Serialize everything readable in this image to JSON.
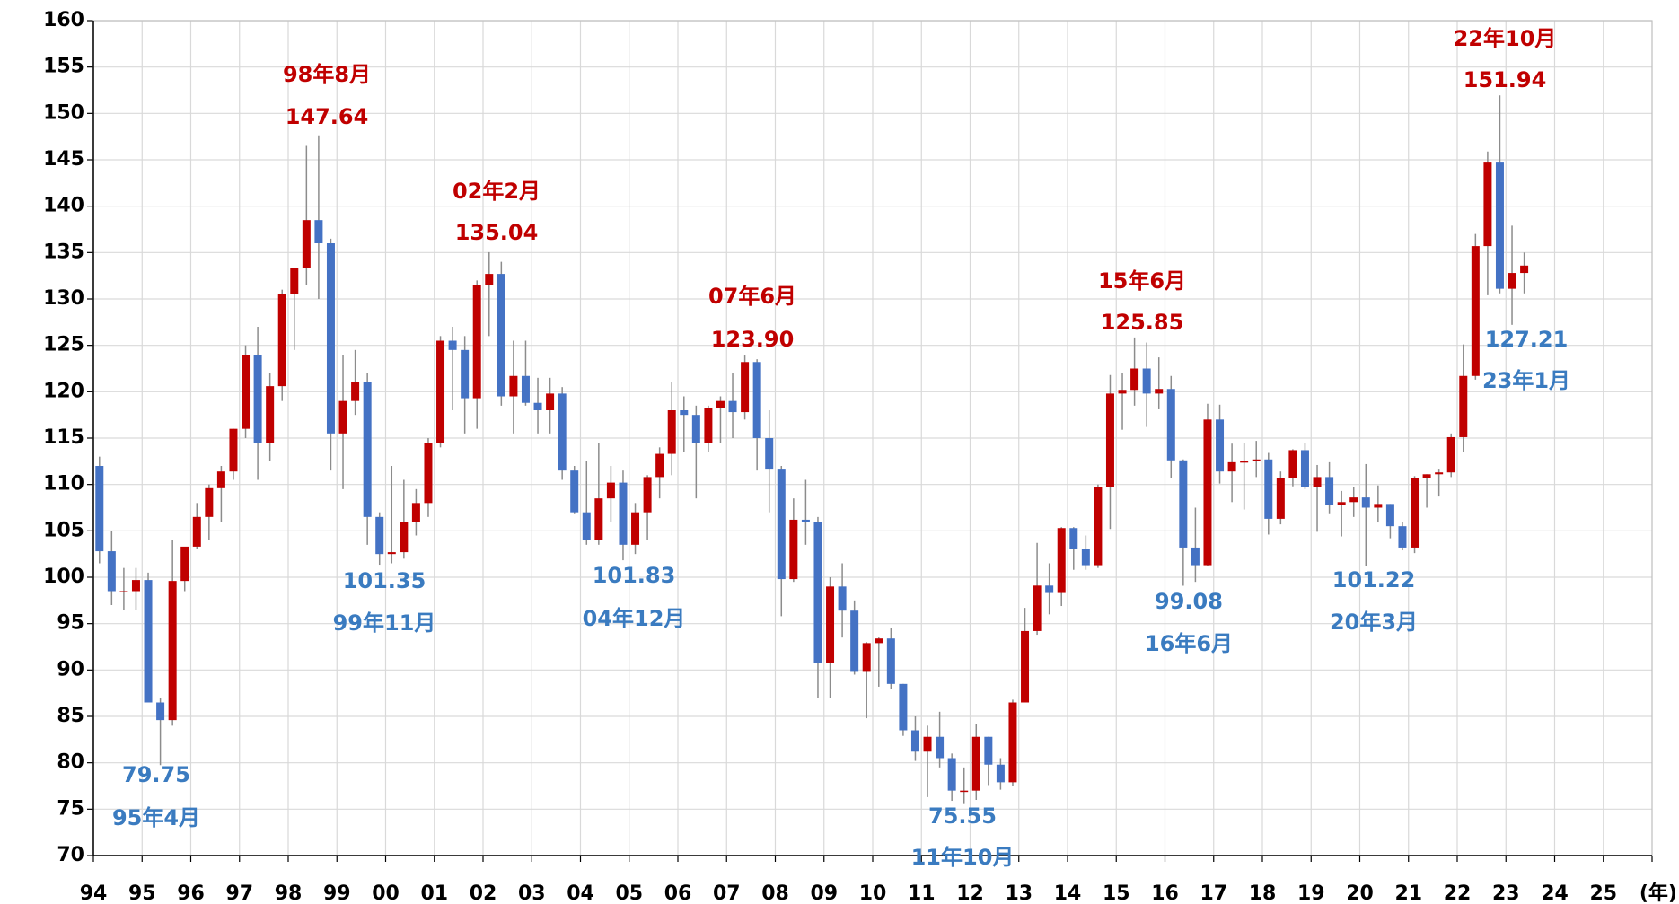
{
  "chart_data": {
    "type": "candlestick",
    "x_label": "(年)",
    "xlim": [
      1994,
      2026
    ],
    "xticks": [
      {
        "value": 1994,
        "label": "94"
      },
      {
        "value": 1995,
        "label": "95"
      },
      {
        "value": 1996,
        "label": "96"
      },
      {
        "value": 1997,
        "label": "97"
      },
      {
        "value": 1998,
        "label": "98"
      },
      {
        "value": 1999,
        "label": "99"
      },
      {
        "value": 2000,
        "label": "00"
      },
      {
        "value": 2001,
        "label": "01"
      },
      {
        "value": 2002,
        "label": "02"
      },
      {
        "value": 2003,
        "label": "03"
      },
      {
        "value": 2004,
        "label": "04"
      },
      {
        "value": 2005,
        "label": "05"
      },
      {
        "value": 2006,
        "label": "06"
      },
      {
        "value": 2007,
        "label": "07"
      },
      {
        "value": 2008,
        "label": "08"
      },
      {
        "value": 2009,
        "label": "09"
      },
      {
        "value": 2010,
        "label": "10"
      },
      {
        "value": 2011,
        "label": "11"
      },
      {
        "value": 2012,
        "label": "12"
      },
      {
        "value": 2013,
        "label": "13"
      },
      {
        "value": 2014,
        "label": "14"
      },
      {
        "value": 2015,
        "label": "15"
      },
      {
        "value": 2016,
        "label": "16"
      },
      {
        "value": 2017,
        "label": "17"
      },
      {
        "value": 2018,
        "label": "18"
      },
      {
        "value": 2019,
        "label": "19"
      },
      {
        "value": 2020,
        "label": "20"
      },
      {
        "value": 2021,
        "label": "21"
      },
      {
        "value": 2022,
        "label": "22"
      },
      {
        "value": 2023,
        "label": "23"
      },
      {
        "value": 2024,
        "label": "24"
      },
      {
        "value": 2025,
        "label": "25"
      }
    ],
    "ylim": [
      70,
      160
    ],
    "yticks": [
      70,
      75,
      80,
      85,
      90,
      95,
      100,
      105,
      110,
      115,
      120,
      125,
      130,
      135,
      140,
      145,
      150,
      155,
      160
    ],
    "grid": true,
    "up_color": "#c00000",
    "down_color": "#4472c4",
    "wick_color": "#8c8c8c",
    "x": [
      1994.125,
      1994.375,
      1994.625,
      1994.875,
      1995.125,
      1995.375,
      1995.625,
      1995.875,
      1996.125,
      1996.375,
      1996.625,
      1996.875,
      1997.125,
      1997.375,
      1997.625,
      1997.875,
      1998.125,
      1998.375,
      1998.625,
      1998.875,
      1999.125,
      1999.375,
      1999.625,
      1999.875,
      2000.125,
      2000.375,
      2000.625,
      2000.875,
      2001.125,
      2001.375,
      2001.625,
      2001.875,
      2002.125,
      2002.375,
      2002.625,
      2002.875,
      2003.125,
      2003.375,
      2003.625,
      2003.875,
      2004.125,
      2004.375,
      2004.625,
      2004.875,
      2005.125,
      2005.375,
      2005.625,
      2005.875,
      2006.125,
      2006.375,
      2006.625,
      2006.875,
      2007.125,
      2007.375,
      2007.625,
      2007.875,
      2008.125,
      2008.375,
      2008.625,
      2008.875,
      2009.125,
      2009.375,
      2009.625,
      2009.875,
      2010.125,
      2010.375,
      2010.625,
      2010.875,
      2011.125,
      2011.375,
      2011.625,
      2011.875,
      2012.125,
      2012.375,
      2012.625,
      2012.875,
      2013.125,
      2013.375,
      2013.625,
      2013.875,
      2014.125,
      2014.375,
      2014.625,
      2014.875,
      2015.125,
      2015.375,
      2015.625,
      2015.875,
      2016.125,
      2016.375,
      2016.625,
      2016.875,
      2017.125,
      2017.375,
      2017.625,
      2017.875,
      2018.125,
      2018.375,
      2018.625,
      2018.875,
      2019.125,
      2019.375,
      2019.625,
      2019.875,
      2020.125,
      2020.375,
      2020.625,
      2020.875,
      2021.125,
      2021.375,
      2021.625,
      2021.875,
      2022.125,
      2022.375,
      2022.625,
      2022.875,
      2023.125,
      2023.375
    ],
    "open": [
      112,
      102.8,
      98.5,
      98.5,
      99.7,
      86.5,
      84.6,
      99.6,
      103.3,
      106.5,
      109.6,
      111.4,
      116,
      124,
      114.5,
      120.6,
      130.5,
      133.3,
      138.5,
      136,
      115.5,
      119,
      121,
      106.5,
      102.5,
      102.7,
      106,
      108,
      114.5,
      125.5,
      124.5,
      119.3,
      131.5,
      132.7,
      119.5,
      121.7,
      118.8,
      118,
      119.8,
      111.5,
      107,
      104,
      108.5,
      110.2,
      103.5,
      107,
      110.8,
      113.3,
      118,
      117.5,
      114.5,
      118.2,
      119,
      117.8,
      123.2,
      115,
      111.7,
      99.8,
      106.2,
      106,
      90.8,
      99,
      96.4,
      89.8,
      92.9,
      93.4,
      88.5,
      83.5,
      81.2,
      82.8,
      80.5,
      77,
      77,
      82.8,
      79.8,
      77.9,
      86.5,
      94.2,
      99.1,
      98.3,
      105.3,
      103,
      101.3,
      109.7,
      119.8,
      120.2,
      122.5,
      119.8,
      120.3,
      112.6,
      103.2,
      101.3,
      117,
      111.4,
      112.4,
      112.5,
      112.7,
      106.3,
      110.7,
      113.7,
      109.7,
      110.8,
      107.8,
      108.1,
      108.6,
      107.5,
      107.9,
      105.5,
      103.2,
      110.7,
      111.1,
      111.3,
      115.1,
      121.7,
      135.7,
      144.7,
      131.1,
      132.8
    ],
    "high": [
      113,
      105,
      101,
      101,
      100.5,
      87,
      104,
      103,
      108,
      110,
      112,
      116,
      125,
      127,
      122,
      131,
      133,
      146.5,
      147.64,
      136.5,
      124,
      124.5,
      122,
      107,
      112,
      110.5,
      109.5,
      115,
      126,
      127,
      126,
      132,
      135.04,
      134,
      125.5,
      125.5,
      121.5,
      121.5,
      120.5,
      112,
      112.5,
      114.5,
      112,
      111.5,
      108,
      111,
      114,
      121,
      119.5,
      118.5,
      118.5,
      119.5,
      122,
      123.9,
      123.5,
      118,
      112,
      108.5,
      110.5,
      106.5,
      100,
      101.5,
      97.5,
      93,
      93.5,
      94.5,
      88.5,
      85,
      84,
      85.5,
      81,
      79.5,
      84.2,
      82.8,
      80.5,
      86.8,
      96.7,
      103.7,
      101.5,
      105.4,
      105.4,
      104.5,
      110,
      121.8,
      122,
      125.85,
      125.3,
      123.7,
      121.7,
      112.7,
      107.5,
      118.7,
      118.6,
      114.4,
      114.5,
      114.7,
      113.4,
      111.4,
      113.8,
      114.5,
      112.1,
      112.4,
      109.3,
      109.7,
      112.2,
      109.9,
      107.9,
      106,
      110.9,
      111.1,
      111.7,
      115.5,
      125.1,
      137,
      145.9,
      151.94,
      137.9,
      135
    ],
    "low": [
      101.5,
      97,
      96.5,
      96.5,
      86.5,
      79.75,
      84,
      98.5,
      103,
      104,
      106,
      110.5,
      115,
      110.5,
      112.5,
      119,
      124.5,
      131.5,
      130,
      111.5,
      109.5,
      117.5,
      103.5,
      101.35,
      101.5,
      102,
      104.5,
      106.5,
      114,
      118,
      115.5,
      116,
      126,
      118.5,
      115.5,
      118.5,
      115.5,
      115.5,
      110.5,
      106.8,
      103.5,
      103.5,
      106,
      101.83,
      102.5,
      104,
      108.5,
      111,
      113.5,
      108.5,
      113.5,
      114.5,
      115,
      117,
      111.5,
      107,
      95.8,
      99.5,
      103.5,
      87,
      87,
      93.5,
      89.5,
      84.8,
      88.2,
      88,
      82.9,
      80.2,
      76.3,
      79.5,
      75.9,
      75.55,
      76,
      77.6,
      77.1,
      77.5,
      86.5,
      93.8,
      96,
      96.9,
      100.8,
      100.8,
      101,
      105.2,
      115.9,
      118.5,
      116.2,
      118.1,
      110.7,
      99.08,
      99.5,
      101.2,
      110.1,
      108.1,
      107.3,
      110.8,
      104.6,
      105.7,
      109.8,
      109.5,
      104.9,
      106.8,
      104.4,
      106.5,
      101.22,
      105.9,
      104.2,
      102.9,
      102.6,
      107.5,
      108.7,
      110.8,
      113.5,
      121.3,
      130.4,
      130.6,
      127.21,
      130.6
    ],
    "close": [
      102.8,
      98.5,
      98.5,
      99.7,
      86.5,
      84.6,
      99.6,
      103.3,
      106.5,
      109.6,
      111.4,
      116,
      124,
      114.5,
      120.6,
      130.5,
      133.3,
      138.5,
      136,
      115.5,
      119,
      121,
      106.5,
      102.5,
      102.7,
      106,
      108,
      114.5,
      125.5,
      124.5,
      119.3,
      131.5,
      132.7,
      119.5,
      121.7,
      118.8,
      118,
      119.8,
      111.5,
      107,
      104,
      108.5,
      110.2,
      103.5,
      107,
      110.8,
      113.3,
      118,
      117.5,
      114.5,
      118.2,
      119,
      117.8,
      123.2,
      115,
      111.7,
      99.8,
      106.2,
      106,
      90.8,
      99,
      96.4,
      89.8,
      92.9,
      93.4,
      88.5,
      83.5,
      81.2,
      82.8,
      80.5,
      77,
      77,
      82.8,
      79.8,
      77.9,
      86.5,
      94.2,
      99.1,
      98.3,
      105.3,
      103,
      101.3,
      109.7,
      119.8,
      120.2,
      122.5,
      119.8,
      120.3,
      112.6,
      103.2,
      101.3,
      117,
      111.4,
      112.4,
      112.5,
      112.7,
      106.3,
      110.7,
      113.7,
      109.7,
      110.8,
      107.8,
      108.1,
      108.6,
      107.5,
      107.9,
      105.5,
      103.2,
      110.7,
      111.1,
      111.3,
      115.1,
      121.7,
      135.7,
      144.7,
      131.1,
      132.8,
      133.6
    ],
    "annotations": [
      {
        "date": "98年8月",
        "value": "147.64",
        "color": "#c00000"
      },
      {
        "date": "02年2月",
        "value": "135.04",
        "color": "#c00000"
      },
      {
        "date": "07年6月",
        "value": "123.90",
        "color": "#c00000"
      },
      {
        "date": "15年6月",
        "value": "125.85",
        "color": "#c00000"
      },
      {
        "date": "22年10月",
        "value": "151.94",
        "color": "#c00000"
      },
      {
        "date": "95年4月",
        "value": "79.75",
        "color": "#3a7bc0"
      },
      {
        "date": "99年11月",
        "value": "101.35",
        "color": "#3a7bc0"
      },
      {
        "date": "04年12月",
        "value": "101.83",
        "color": "#3a7bc0"
      },
      {
        "date": "11年10月",
        "value": "75.55",
        "color": "#3a7bc0"
      },
      {
        "date": "16年6月",
        "value": "99.08",
        "color": "#3a7bc0"
      },
      {
        "date": "20年3月",
        "value": "101.22",
        "color": "#3a7bc0"
      },
      {
        "date": "23年1月",
        "value": "127.21",
        "color": "#3a7bc0"
      }
    ]
  }
}
